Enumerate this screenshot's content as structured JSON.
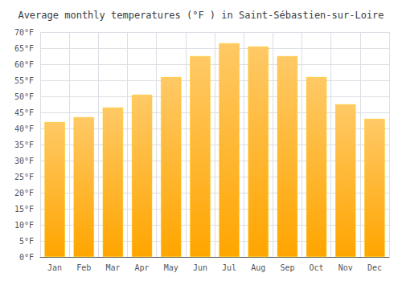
{
  "chart_data": {
    "type": "bar",
    "title": "Average monthly temperatures (°F ) in Saint-Sébastien-sur-Loire",
    "categories": [
      "Jan",
      "Feb",
      "Mar",
      "Apr",
      "May",
      "Jun",
      "Jul",
      "Aug",
      "Sep",
      "Oct",
      "Nov",
      "Dec"
    ],
    "values": [
      42,
      43.5,
      46.5,
      50.5,
      56,
      62.5,
      66.5,
      65.5,
      62.5,
      56,
      47.5,
      43
    ],
    "color": "#FFA500",
    "ylim": [
      0,
      70
    ],
    "yticks": [
      {
        "value": 0,
        "label": "0°F"
      },
      {
        "value": 5,
        "label": "5°F"
      },
      {
        "value": 10,
        "label": "10°F"
      },
      {
        "value": 15,
        "label": "15°F"
      },
      {
        "value": 20,
        "label": "20°F"
      },
      {
        "value": 25,
        "label": "25°F"
      },
      {
        "value": 30,
        "label": "30°F"
      },
      {
        "value": 35,
        "label": "35°F"
      },
      {
        "value": 40,
        "label": "40°F"
      },
      {
        "value": 45,
        "label": "45°F"
      },
      {
        "value": 50,
        "label": "50°F"
      },
      {
        "value": 55,
        "label": "55°F"
      },
      {
        "value": 60,
        "label": "60°F"
      },
      {
        "value": 65,
        "label": "65°F"
      },
      {
        "value": 70,
        "label": "70°F"
      }
    ],
    "grid": true
  }
}
